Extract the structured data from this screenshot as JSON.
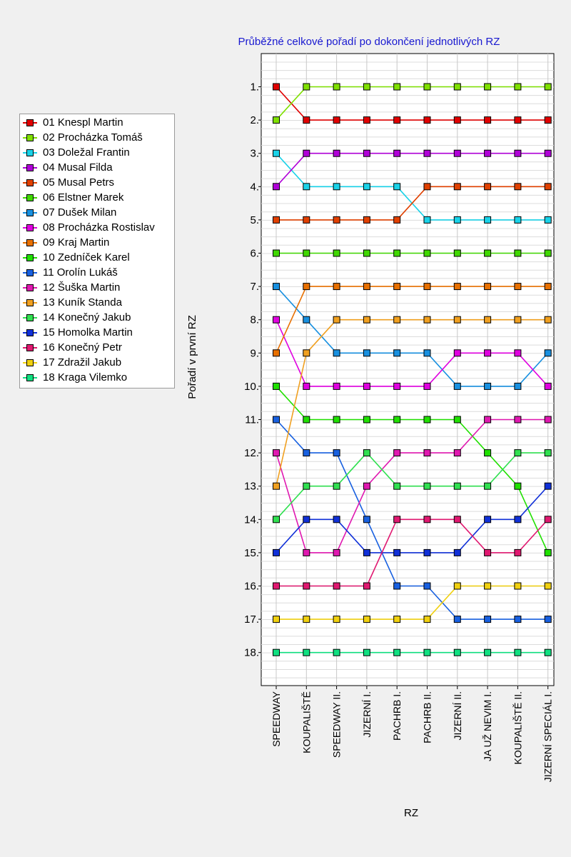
{
  "chart_data": {
    "type": "line",
    "title": "Průběžné celkové pořadí po dokončení jednotlivých RZ",
    "xlabel": "RZ",
    "ylabel": "Pořadí v první RZ",
    "categories": [
      "SPEEDWAY",
      "KOUPALIŠTĚ",
      "SPEEDWAY II.",
      "JIZERNÍ I.",
      "PACHRB I.",
      "PACHRB II.",
      "JIZERNÍ II.",
      "JA UŽ NEVIM I.",
      "KOUPALIŠTĚ II.",
      "JIZERNÍ SPECIÁL I."
    ],
    "yticks": [
      "1.",
      "2.",
      "3.",
      "4.",
      "5.",
      "6.",
      "7.",
      "8.",
      "9.",
      "10.",
      "11.",
      "12.",
      "13.",
      "14.",
      "15.",
      "16.",
      "17.",
      "18."
    ],
    "ylim": [
      0,
      19
    ],
    "y_inverted": true,
    "grid": true,
    "legend_position": "left",
    "series": [
      {
        "name": "01 Knespl Martin",
        "color": "#e00000",
        "values": [
          1,
          2,
          2,
          2,
          2,
          2,
          2,
          2,
          2,
          2
        ]
      },
      {
        "name": "02 Procházka Tomáš",
        "color": "#7fe000",
        "values": [
          2,
          1,
          1,
          1,
          1,
          1,
          1,
          1,
          1,
          1
        ]
      },
      {
        "name": "03 Doležal Frantin",
        "color": "#19d2e8",
        "values": [
          3,
          4,
          4,
          4,
          4,
          5,
          5,
          5,
          5,
          5
        ]
      },
      {
        "name": "04 Musal Filda",
        "color": "#b000d8",
        "values": [
          4,
          3,
          3,
          3,
          3,
          3,
          3,
          3,
          3,
          3
        ]
      },
      {
        "name": "05 Musal Petrs",
        "color": "#e04000",
        "values": [
          5,
          5,
          5,
          5,
          5,
          4,
          4,
          4,
          4,
          4
        ]
      },
      {
        "name": "06 Elstner Marek",
        "color": "#40d800",
        "values": [
          6,
          6,
          6,
          6,
          6,
          6,
          6,
          6,
          6,
          6
        ]
      },
      {
        "name": "07 Dušek Milan",
        "color": "#1890e0",
        "values": [
          7,
          8,
          9,
          9,
          9,
          9,
          10,
          10,
          10,
          9
        ]
      },
      {
        "name": "08 Procházka Rostislav",
        "color": "#e000e0",
        "values": [
          8,
          10,
          10,
          10,
          10,
          10,
          9,
          9,
          9,
          10
        ]
      },
      {
        "name": "09 Kraj Martin",
        "color": "#e87000",
        "values": [
          9,
          7,
          7,
          7,
          7,
          7,
          7,
          7,
          7,
          7
        ]
      },
      {
        "name": "10 Zedníček Karel",
        "color": "#20e000",
        "values": [
          10,
          11,
          11,
          11,
          11,
          11,
          11,
          12,
          13,
          15
        ]
      },
      {
        "name": "11 Orolín Lukáš",
        "color": "#1860e0",
        "values": [
          11,
          12,
          12,
          14,
          16,
          16,
          17,
          17,
          17,
          17
        ]
      },
      {
        "name": "12 Šuška Martin",
        "color": "#e018b0",
        "values": [
          12,
          15,
          15,
          13,
          12,
          12,
          12,
          11,
          11,
          11
        ]
      },
      {
        "name": "13 Kuník Standa",
        "color": "#f0a020",
        "values": [
          13,
          9,
          8,
          8,
          8,
          8,
          8,
          8,
          8,
          8
        ]
      },
      {
        "name": "14 Konečný Jakub",
        "color": "#30e050",
        "values": [
          14,
          13,
          13,
          12,
          13,
          13,
          13,
          13,
          12,
          12
        ]
      },
      {
        "name": "15 Homolka Martin",
        "color": "#1030d8",
        "values": [
          15,
          14,
          14,
          15,
          15,
          15,
          15,
          14,
          14,
          13
        ]
      },
      {
        "name": "16 Konečný Petr",
        "color": "#e01870",
        "values": [
          16,
          16,
          16,
          16,
          14,
          14,
          14,
          15,
          15,
          14
        ]
      },
      {
        "name": "17 Zdražil Jakub",
        "color": "#f0d010",
        "values": [
          17,
          17,
          17,
          17,
          17,
          17,
          16,
          16,
          16,
          16
        ]
      },
      {
        "name": "18 Kraga Vilemko",
        "color": "#10e080",
        "values": [
          18,
          18,
          18,
          18,
          18,
          18,
          18,
          18,
          18,
          18
        ]
      }
    ]
  }
}
